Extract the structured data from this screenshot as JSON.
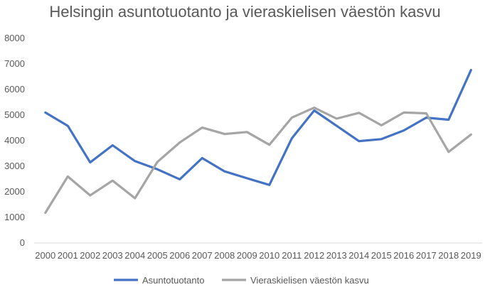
{
  "chart_data": {
    "type": "line",
    "title": "Helsingin asuntotuotanto ja vieraskielisen väestön kasvu",
    "xlabel": "",
    "ylabel": "",
    "categories": [
      "2000",
      "2001",
      "2002",
      "2003",
      "2004",
      "2005",
      "2006",
      "2007",
      "2008",
      "2009",
      "2010",
      "2011",
      "2012",
      "2013",
      "2014",
      "2015",
      "2016",
      "2017",
      "2018",
      "2019"
    ],
    "ylim": [
      0,
      8000
    ],
    "yticks": [
      0,
      1000,
      2000,
      3000,
      4000,
      5000,
      6000,
      7000,
      8000
    ],
    "grid": false,
    "legend_position": "bottom",
    "series": [
      {
        "name": "Asuntotuotanto",
        "color": "#4472C4",
        "values": [
          5100,
          4580,
          3150,
          3820,
          3200,
          2880,
          2490,
          3320,
          2800,
          2530,
          2270,
          4090,
          5180,
          4580,
          3980,
          4060,
          4400,
          4900,
          4820,
          6760
        ]
      },
      {
        "name": "Vieraskielisen väestön kasvu",
        "color": "#A5A5A5",
        "values": [
          1180,
          2600,
          1860,
          2440,
          1750,
          3170,
          3930,
          4510,
          4260,
          4340,
          3840,
          4900,
          5290,
          4860,
          5090,
          4600,
          5100,
          5070,
          3560,
          4240
        ]
      }
    ]
  }
}
